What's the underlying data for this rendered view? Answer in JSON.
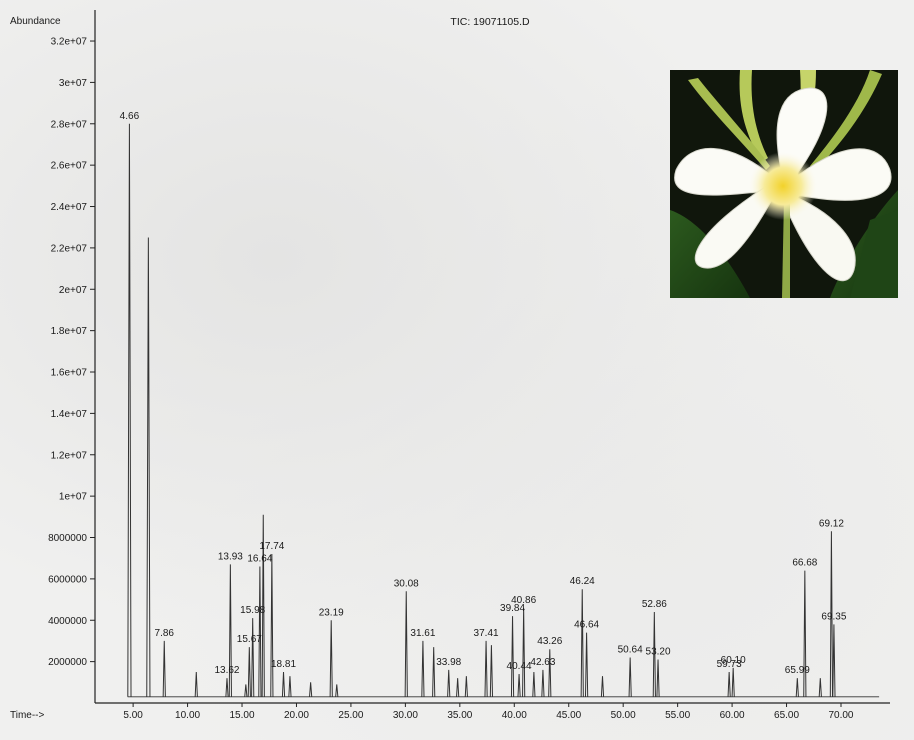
{
  "chart_data": {
    "type": "line",
    "title": "TIC: 19071105.D",
    "ylabel": "Abundance",
    "xlabel": "Time-->",
    "xlim": [
      1.5,
      74.5
    ],
    "ylim": [
      0,
      33500000
    ],
    "x_ticks": [
      5,
      10,
      15,
      20,
      25,
      30,
      35,
      40,
      45,
      50,
      55,
      60,
      65,
      70
    ],
    "x_tick_labels": [
      "5.00",
      "10.00",
      "15.00",
      "20.00",
      "25.00",
      "30.00",
      "35.00",
      "40.00",
      "45.00",
      "50.00",
      "55.00",
      "60.00",
      "65.00",
      "70.00"
    ],
    "y_ticks": [
      2000000,
      4000000,
      6000000,
      8000000,
      10000000,
      12000000,
      14000000,
      16000000,
      18000000,
      20000000,
      22000000,
      24000000,
      26000000,
      28000000,
      30000000,
      32000000
    ],
    "y_tick_labels": [
      "2000000",
      "4000000",
      "6000000",
      "8000000",
      "1e+07",
      "1.2e+07",
      "1.4e+07",
      "1.6e+07",
      "1.8e+07",
      "2e+07",
      "2.2e+07",
      "2.4e+07",
      "2.6e+07",
      "2.8e+07",
      "3e+07",
      "3.2e+07"
    ],
    "grid": false,
    "series": [
      {
        "color": "#333333",
        "peaks": [
          {
            "x": 4.66,
            "y": 28000000,
            "label": "4.66"
          },
          {
            "x": 6.4,
            "y": 22500000
          },
          {
            "x": 7.86,
            "y": 3000000,
            "label": "7.86"
          },
          {
            "x": 10.8,
            "y": 1500000
          },
          {
            "x": 13.62,
            "y": 1200000,
            "label": "13.62"
          },
          {
            "x": 13.93,
            "y": 6700000,
            "label": "13.93"
          },
          {
            "x": 15.35,
            "y": 900000
          },
          {
            "x": 15.67,
            "y": 2700000,
            "label": "15.67"
          },
          {
            "x": 15.98,
            "y": 4100000,
            "label": "15.98"
          },
          {
            "x": 16.64,
            "y": 6600000,
            "label": "16.64"
          },
          {
            "x": 16.95,
            "y": 9100000
          },
          {
            "x": 17.74,
            "y": 7200000,
            "label": "17.74"
          },
          {
            "x": 18.81,
            "y": 1500000,
            "label": "18.81"
          },
          {
            "x": 19.4,
            "y": 1300000
          },
          {
            "x": 21.3,
            "y": 1000000
          },
          {
            "x": 23.19,
            "y": 4000000,
            "label": "23.19"
          },
          {
            "x": 23.7,
            "y": 900000
          },
          {
            "x": 30.08,
            "y": 5400000,
            "label": "30.08"
          },
          {
            "x": 31.61,
            "y": 3000000,
            "label": "31.61"
          },
          {
            "x": 32.6,
            "y": 2700000
          },
          {
            "x": 33.98,
            "y": 1600000,
            "label": "33.98"
          },
          {
            "x": 34.8,
            "y": 1200000
          },
          {
            "x": 35.6,
            "y": 1300000
          },
          {
            "x": 37.41,
            "y": 3000000,
            "label": "37.41"
          },
          {
            "x": 37.9,
            "y": 2800000
          },
          {
            "x": 39.84,
            "y": 4200000,
            "label": "39.84"
          },
          {
            "x": 40.86,
            "y": 4600000,
            "label": "40.86"
          },
          {
            "x": 40.44,
            "y": 1400000,
            "label": "40.44"
          },
          {
            "x": 41.8,
            "y": 1500000
          },
          {
            "x": 42.63,
            "y": 1600000,
            "label": "42.63"
          },
          {
            "x": 43.26,
            "y": 2600000,
            "label": "43.26"
          },
          {
            "x": 46.24,
            "y": 5500000,
            "label": "46.24"
          },
          {
            "x": 46.64,
            "y": 3400000,
            "label": "46.64"
          },
          {
            "x": 48.1,
            "y": 1300000
          },
          {
            "x": 50.64,
            "y": 2200000,
            "label": "50.64"
          },
          {
            "x": 52.86,
            "y": 4400000,
            "label": "52.86"
          },
          {
            "x": 53.2,
            "y": 2100000,
            "label": "53.20"
          },
          {
            "x": 59.73,
            "y": 1500000,
            "label": "59.73"
          },
          {
            "x": 60.1,
            "y": 1700000,
            "label": "60.10"
          },
          {
            "x": 65.99,
            "y": 1200000,
            "label": "65.99"
          },
          {
            "x": 66.68,
            "y": 6400000,
            "label": "66.68"
          },
          {
            "x": 68.1,
            "y": 1200000
          },
          {
            "x": 69.12,
            "y": 8300000,
            "label": "69.12"
          },
          {
            "x": 69.35,
            "y": 3800000,
            "label": "69.35"
          }
        ]
      }
    ]
  }
}
